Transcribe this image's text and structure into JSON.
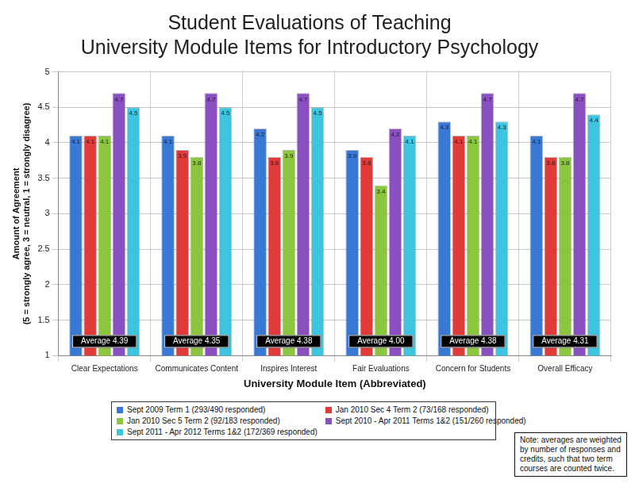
{
  "chart_data": {
    "type": "bar",
    "title": [
      "Student Evaluations of Teaching",
      "University Module Items for Introductory Psychology"
    ],
    "x_label": "University Module Item (Abbreviated)",
    "y_label": [
      "Amount of Agreement",
      "(5 = strongly agree, 3 = neutral, 1 = strongly disagree)"
    ],
    "categories": [
      "Clear Expectations",
      "Communicates Content",
      "Inspires Interest",
      "Fair Evaluations",
      "Concern for Students",
      "Overall Efficacy"
    ],
    "series": [
      {
        "name": "Sept 2009 Term 1 (293/490 responded)",
        "color": "#3a78d6",
        "values": [
          4.1,
          4.1,
          4.2,
          3.9,
          4.3,
          4.1
        ]
      },
      {
        "name": "Jan 2010 Sec 4 Term 2 (73/168 responded)",
        "color": "#e03a3a",
        "values": [
          4.1,
          3.9,
          3.8,
          3.8,
          4.1,
          3.8
        ]
      },
      {
        "name": "Jan 2010 Sec 5 Term 2 (92/183 responded)",
        "color": "#8cc63f",
        "values": [
          4.1,
          3.8,
          3.9,
          3.4,
          4.1,
          3.8
        ]
      },
      {
        "name": "Sept 2010 - Apr 2011 Terms 1&2 (151/260 responded)",
        "color": "#8a4fc0",
        "values": [
          4.7,
          4.7,
          4.7,
          4.2,
          4.7,
          4.7
        ]
      },
      {
        "name": "Sept 2011 - Apr 2012 Terms 1&2 (172/369 responded)",
        "color": "#3cc4e0",
        "values": [
          4.5,
          4.5,
          4.5,
          4.1,
          4.3,
          4.4
        ]
      }
    ],
    "average_labels": [
      "Average 4.39",
      "Average 4.35",
      "Average 4.38",
      "Average 4.00",
      "Average 4.38",
      "Average 4.31"
    ],
    "note": "Note:  averages are weighted by  number of responses and credits, such that two term courses are counted twice.",
    "ylim": [
      1,
      5
    ],
    "yticks": [
      1,
      1.5,
      2,
      2.5,
      3,
      3.5,
      4,
      4.5,
      5
    ],
    "grid": true,
    "legend": "bottom",
    "data_labels": true
  }
}
